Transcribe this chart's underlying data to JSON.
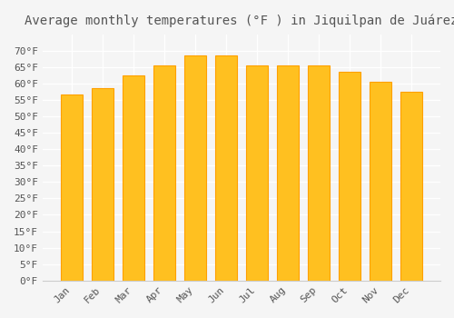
{
  "title": "Average monthly temperatures (°F ) in Jiquilpan de Juárez",
  "months": [
    "Jan",
    "Feb",
    "Mar",
    "Apr",
    "May",
    "Jun",
    "Jul",
    "Aug",
    "Sep",
    "Oct",
    "Nov",
    "Dec"
  ],
  "values": [
    56.5,
    58.5,
    62.5,
    65.5,
    68.5,
    68.5,
    65.5,
    65.5,
    65.5,
    63.5,
    60.5,
    57.5
  ],
  "bar_color_face": "#FFC020",
  "bar_color_edge": "#FFA000",
  "ylim": [
    0,
    75
  ],
  "yticks": [
    0,
    5,
    10,
    15,
    20,
    25,
    30,
    35,
    40,
    45,
    50,
    55,
    60,
    65,
    70
  ],
  "background_color": "#f5f5f5",
  "grid_color": "#ffffff",
  "title_fontsize": 10,
  "tick_fontsize": 8,
  "title_color": "#555555",
  "tick_color": "#555555"
}
